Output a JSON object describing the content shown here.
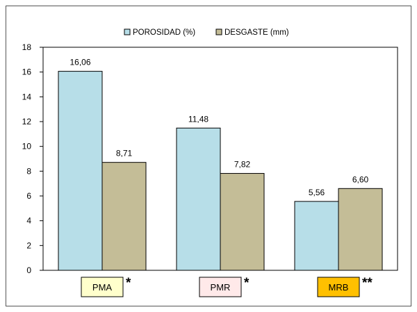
{
  "chart_data": {
    "type": "bar",
    "categories": [
      "PMA",
      "PMR",
      "MRB"
    ],
    "category_markers": [
      "*",
      "*",
      "**"
    ],
    "category_box_colors": [
      "#FFFFCC",
      "#FFE9E9",
      "#FFC000"
    ],
    "series": [
      {
        "name": "POROSIDAD (%)",
        "values": [
          16.06,
          11.48,
          5.56
        ],
        "labels": [
          "16,06",
          "11,48",
          "5,56"
        ],
        "color": "#B7DEE8"
      },
      {
        "name": "DESGASTE (mm)",
        "values": [
          8.71,
          7.82,
          6.6
        ],
        "labels": [
          "8,71",
          "7,82",
          "6,60"
        ],
        "color": "#C4BD97"
      }
    ],
    "ylim": [
      0,
      18
    ],
    "yticks": [
      "0",
      "2",
      "4",
      "6",
      "8",
      "10",
      "12",
      "14",
      "16",
      "18"
    ],
    "grid": false,
    "legend_position": "top"
  }
}
